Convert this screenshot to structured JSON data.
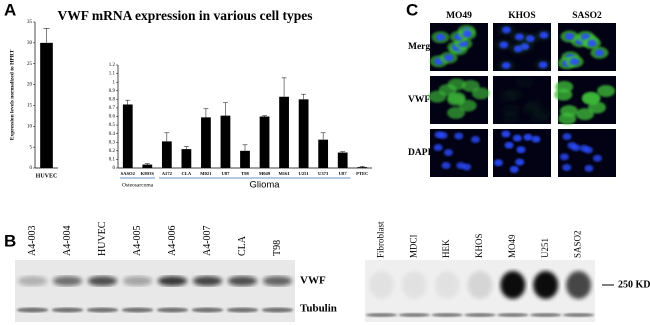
{
  "panels": {
    "a": "A",
    "b": "B",
    "c": "C"
  },
  "chart_data": [
    {
      "type": "bar",
      "title": "VWF mRNA expression in various cell types",
      "y_label": "Expression levels normalized to HPRT",
      "categories": [
        "HUVEC"
      ],
      "values": [
        30
      ],
      "errors": [
        3.5
      ],
      "color": "#000000",
      "ylim": [
        0,
        35
      ],
      "yticks": [
        0,
        5,
        10,
        15,
        20,
        25,
        30,
        35
      ]
    },
    {
      "type": "bar",
      "categories": [
        "SASO2",
        "KHOS",
        "A172",
        "CLA",
        "M021",
        "U87",
        "T98",
        "M049",
        "M161",
        "U251",
        "U373",
        "U87",
        "PTEC"
      ],
      "values": [
        0.74,
        0.04,
        0.31,
        0.22,
        0.59,
        0.61,
        0.2,
        0.6,
        0.83,
        0.8,
        0.33,
        0.18,
        0.01
      ],
      "errors": [
        0.05,
        0.01,
        0.1,
        0.03,
        0.1,
        0.15,
        0.07,
        0.01,
        0.22,
        0.06,
        0.08,
        0.01,
        0.01
      ],
      "color": "#000000",
      "ylim": [
        0,
        1.2
      ],
      "yticks": [
        0,
        0.1,
        0.2,
        0.3,
        0.4,
        0.5,
        0.6,
        0.7,
        0.8,
        0.9,
        1,
        1.1,
        1.2
      ],
      "group_labels": [
        "Osteosarcoma",
        "Glioma"
      ]
    }
  ],
  "blot_left": {
    "lanes": [
      "A4-003",
      "A4-004",
      "HUVEC",
      "A4-005",
      "A4-006",
      "A4-007",
      "CLA",
      "T98"
    ],
    "rows": [
      "VWF",
      "Tubulin"
    ]
  },
  "blot_right": {
    "lanes": [
      "Fibroblast",
      "MDCI",
      "HEK",
      "KHOS",
      "MO49",
      "U251",
      "SASO2"
    ],
    "marker": "250 KD"
  },
  "microscopy": {
    "columns": [
      "MO49",
      "KHOS",
      "SASO2"
    ],
    "rows": [
      "Merge",
      "VWF",
      "DAPI"
    ]
  }
}
